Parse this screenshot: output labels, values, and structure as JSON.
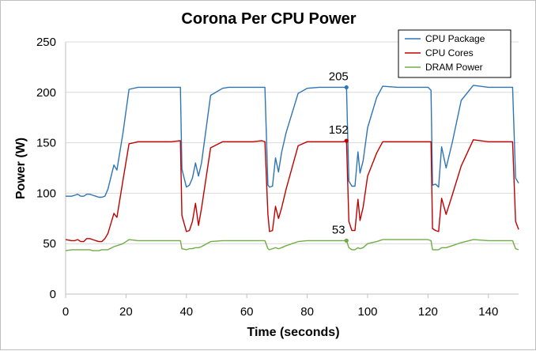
{
  "chart_data": {
    "type": "line",
    "title": "Corona Per CPU Power",
    "xlabel": "Time (seconds)",
    "ylabel": "Power (W)",
    "xlim": [
      0,
      150
    ],
    "ylim": [
      0,
      250
    ],
    "x_ticks": [
      "0",
      "20",
      "40",
      "60",
      "80",
      "100",
      "120",
      "140"
    ],
    "y_ticks": [
      "0",
      "50",
      "100",
      "150",
      "200",
      "250"
    ],
    "grid": "horizontal",
    "legend_position": "top-right",
    "series": [
      {
        "name": "CPU Package",
        "color": "#2e75b6",
        "x": [
          0,
          2,
          3,
          4,
          5,
          6,
          7,
          8,
          9,
          10,
          11,
          12,
          13,
          14,
          16,
          17,
          19,
          21,
          24,
          26,
          30,
          35,
          38,
          38.5,
          40,
          41,
          42,
          43,
          44,
          45,
          48,
          52,
          54,
          58,
          62,
          65,
          66,
          67,
          67.5,
          68.5,
          69.5,
          70.5,
          71.5,
          73,
          77,
          80,
          84,
          88,
          92,
          93,
          93.8,
          94.8,
          95.8,
          96.8,
          97.5,
          98.5,
          100,
          103,
          105,
          110,
          115,
          120,
          121,
          121.5,
          122.5,
          123.5,
          124.5,
          126,
          128,
          131,
          135,
          140,
          145,
          148,
          149,
          150
        ],
        "y": [
          97,
          97,
          98,
          99,
          97,
          97,
          99,
          99,
          98,
          97,
          96,
          96,
          97,
          104,
          128,
          123,
          160,
          203,
          205,
          205,
          205,
          205,
          205,
          124,
          106,
          108,
          115,
          130,
          117,
          130,
          197,
          204,
          205,
          205,
          205,
          205,
          205,
          108,
          106,
          107,
          135,
          121,
          140,
          160,
          199,
          204,
          205,
          205,
          205,
          205,
          112,
          107,
          107,
          141,
          120,
          132,
          165,
          195,
          206,
          205,
          205,
          205,
          202,
          108,
          109,
          106,
          146,
          125,
          150,
          192,
          207,
          205,
          205,
          205,
          115,
          110
        ],
        "marker": {
          "x": 93,
          "y": 205,
          "label": "205"
        }
      },
      {
        "name": "CPU Cores",
        "color": "#c00000",
        "x": [
          0,
          2,
          3,
          4,
          5,
          6,
          7,
          8,
          9,
          10,
          11,
          12,
          13,
          14,
          16,
          17,
          19,
          21,
          24,
          26,
          30,
          35,
          38,
          38.5,
          40,
          41,
          42,
          43,
          44,
          45,
          48,
          52,
          54,
          58,
          62,
          65,
          66,
          67,
          67.5,
          68.5,
          69.5,
          70.5,
          71.5,
          73,
          77,
          80,
          84,
          88,
          92,
          93,
          93.8,
          94.8,
          95.8,
          96.8,
          97.5,
          98.5,
          100,
          103,
          105,
          110,
          115,
          120,
          121,
          121.5,
          122.5,
          123.5,
          124.5,
          126,
          128,
          131,
          135,
          140,
          145,
          148,
          149,
          150
        ],
        "y": [
          54,
          53,
          53,
          54,
          52,
          52,
          55,
          55,
          54,
          53,
          52,
          52,
          55,
          60,
          80,
          76,
          113,
          149,
          151,
          151,
          151,
          151,
          152,
          78,
          62,
          63,
          72,
          90,
          68,
          85,
          145,
          151,
          151,
          151,
          151,
          152,
          151,
          79,
          62,
          63,
          87,
          75,
          85,
          104,
          147,
          151,
          151,
          151,
          151,
          152,
          72,
          63,
          63,
          94,
          73,
          86,
          117,
          140,
          151,
          151,
          151,
          151,
          151,
          65,
          63,
          62,
          95,
          79,
          98,
          127,
          153,
          151,
          151,
          151,
          72,
          64
        ],
        "marker": {
          "x": 93,
          "y": 152,
          "label": "152"
        }
      },
      {
        "name": "DRAM Power",
        "color": "#70ad47",
        "x": [
          0,
          2,
          3,
          4,
          5,
          6,
          7,
          8,
          9,
          10,
          11,
          12,
          13,
          14,
          16,
          17,
          19,
          21,
          24,
          26,
          30,
          35,
          38,
          38.5,
          40,
          41,
          42,
          43,
          44,
          45,
          48,
          52,
          54,
          58,
          62,
          65,
          66,
          67,
          67.5,
          68.5,
          69.5,
          70.5,
          71.5,
          73,
          77,
          80,
          84,
          88,
          92,
          93,
          93.8,
          94.8,
          95.8,
          96.8,
          97.5,
          98.5,
          100,
          103,
          105,
          110,
          115,
          120,
          121,
          121.5,
          122.5,
          123.5,
          124.5,
          126,
          128,
          131,
          135,
          140,
          145,
          148,
          149,
          150
        ],
        "y": [
          43,
          44,
          44,
          44,
          44,
          44,
          44,
          44,
          43,
          43,
          43,
          44,
          44,
          44,
          47,
          48,
          50,
          54,
          53,
          53,
          53,
          53,
          53,
          45,
          44,
          45,
          45,
          46,
          46,
          47,
          52,
          53,
          53,
          53,
          53,
          53,
          53,
          45,
          44,
          45,
          46,
          45,
          46,
          48,
          52,
          53,
          53,
          53,
          53,
          53,
          46,
          44,
          44,
          46,
          45,
          46,
          50,
          52,
          54,
          54,
          54,
          54,
          53,
          44,
          44,
          44,
          46,
          46,
          48,
          51,
          54,
          53,
          53,
          53,
          45,
          44
        ],
        "marker": {
          "x": 93,
          "y": 53,
          "label": "53"
        }
      }
    ]
  }
}
